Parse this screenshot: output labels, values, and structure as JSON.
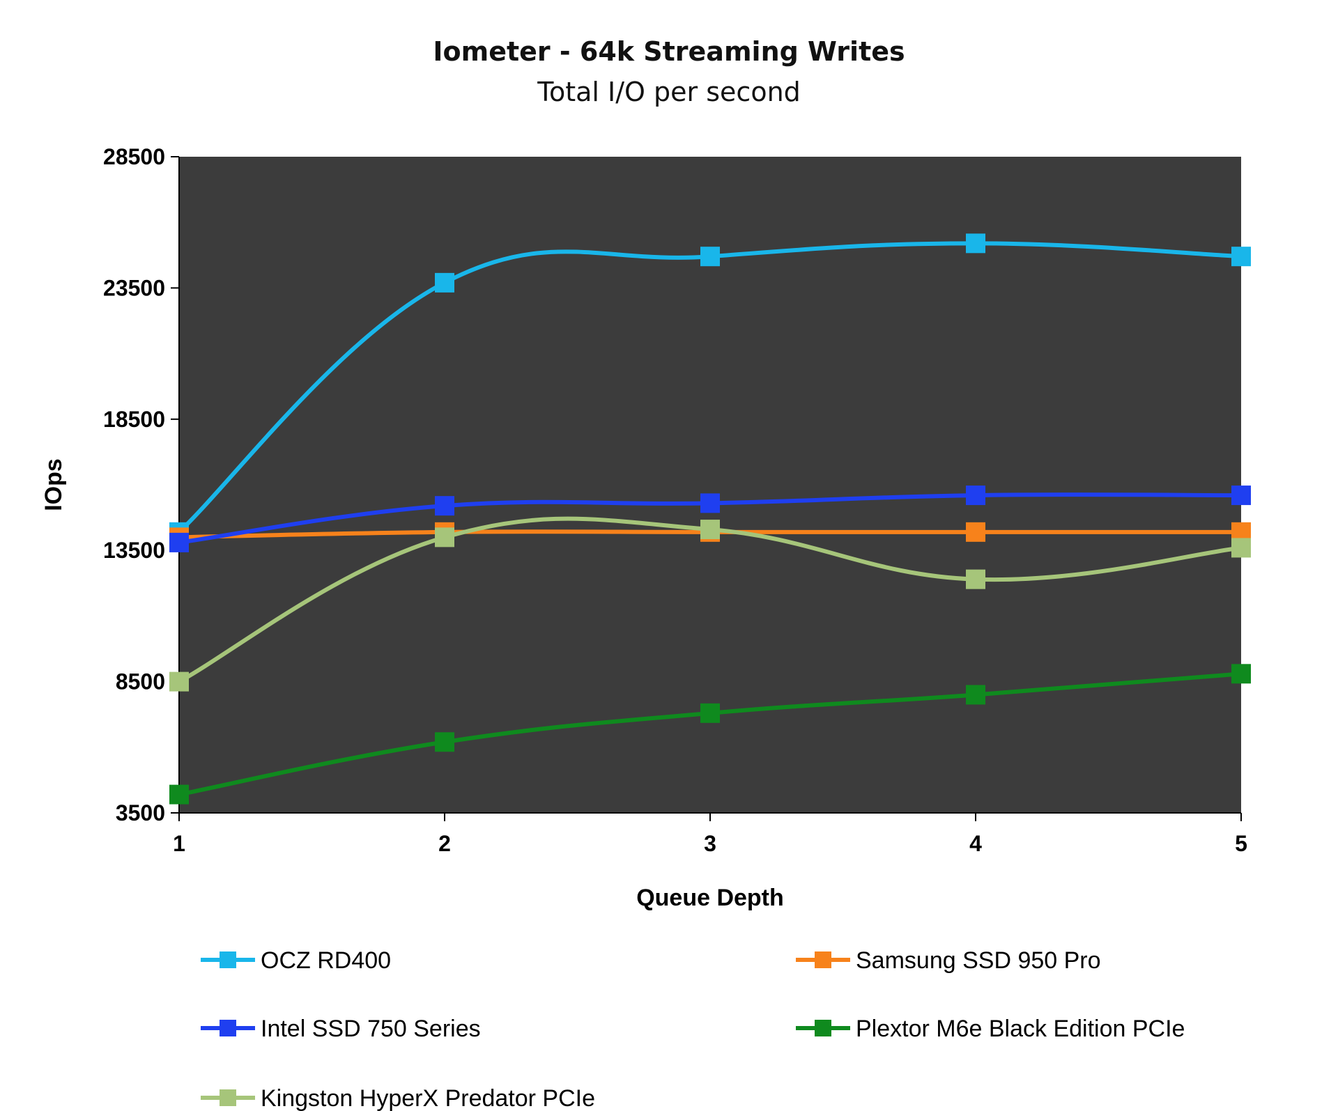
{
  "chart_data": {
    "type": "line",
    "title": "Iometer - 64k Streaming Writes",
    "subtitle": "Total I/O per second",
    "xlabel": "Queue Depth",
    "ylabel": "IOps",
    "x": [
      1,
      2,
      3,
      4,
      5
    ],
    "x_tick_labels": [
      "1",
      "2",
      "3",
      "4",
      "5"
    ],
    "ylim": [
      3500,
      28500
    ],
    "y_ticks": [
      3500,
      8500,
      13500,
      18500,
      23500,
      28500
    ],
    "y_tick_labels": [
      "3500",
      "8500",
      "13500",
      "18500",
      "23500",
      "28500"
    ],
    "plot_background": "#3c3c3c",
    "grid": false,
    "legend_position": "bottom",
    "series": [
      {
        "name": "OCZ RD400",
        "color": "#19b6ea",
        "values": [
          14200,
          23700,
          24700,
          25200,
          24700
        ]
      },
      {
        "name": "Samsung SSD 950 Pro",
        "color": "#f7821b",
        "values": [
          14000,
          14200,
          14200,
          14200,
          14200
        ]
      },
      {
        "name": "Intel SSD 750 Series",
        "color": "#1f3ff0",
        "values": [
          13800,
          15200,
          15300,
          15600,
          15600
        ]
      },
      {
        "name": "Plextor M6e Black Edition PCIe",
        "color": "#0f8a1e",
        "values": [
          4200,
          6200,
          7300,
          8000,
          8800
        ]
      },
      {
        "name": "Kingston HyperX Predator PCIe",
        "color": "#a6c57a",
        "values": [
          8500,
          14000,
          14300,
          12400,
          13600
        ]
      }
    ]
  }
}
